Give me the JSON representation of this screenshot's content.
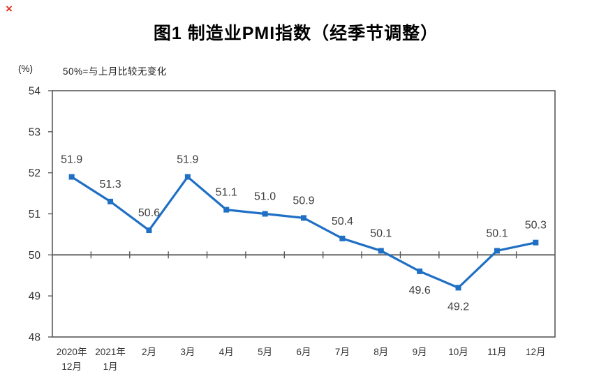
{
  "decorations": {
    "red_mark": "×"
  },
  "colors": {
    "line": "#1f6fc5",
    "axis": "#595959",
    "data_label": "#3d3d3d",
    "tick_label": "#333333",
    "title": "#000000",
    "red_mark": "#e0301e"
  },
  "chart_data": {
    "type": "line",
    "title": "图1 制造业PMI指数（经季节调整）",
    "ylabel": "(%)",
    "annotation": "50%=与上月比较无变化",
    "categories": [
      "2020年\n12月",
      "2021年\n1月",
      "2月",
      "3月",
      "4月",
      "5月",
      "6月",
      "7月",
      "8月",
      "9月",
      "10月",
      "11月",
      "12月"
    ],
    "values": [
      51.9,
      51.3,
      50.6,
      51.9,
      51.1,
      51.0,
      50.9,
      50.4,
      50.1,
      49.6,
      49.2,
      50.1,
      50.3
    ],
    "value_labels": [
      "51.9",
      "51.3",
      "50.6",
      "51.9",
      "51.1",
      "51.0",
      "50.9",
      "50.4",
      "50.1",
      "49.6",
      "49.2",
      "50.1",
      "50.3"
    ],
    "label_positions": [
      "above",
      "above",
      "above",
      "above",
      "above",
      "above",
      "above",
      "above",
      "above",
      "below",
      "below",
      "above",
      "above"
    ],
    "ylim": [
      48,
      54
    ],
    "ytick_step": 1,
    "yticks": [
      48,
      49,
      50,
      51,
      52,
      53,
      54
    ],
    "reference_line": 50,
    "grid": false,
    "legend": "none",
    "marker": "square"
  }
}
